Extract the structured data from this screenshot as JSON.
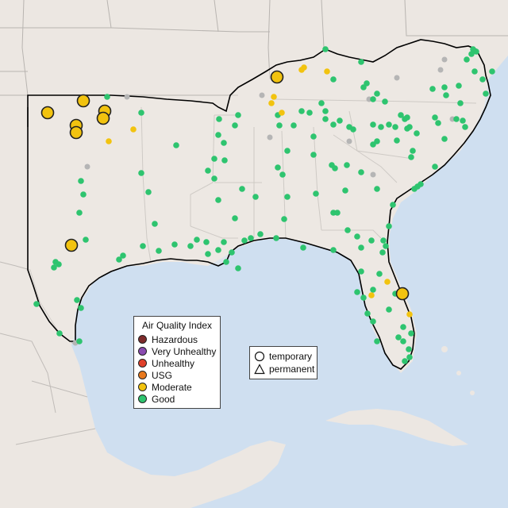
{
  "colors": {
    "ocean": "#cfdff0",
    "land": "#ece7e2",
    "region": "#f0ebe6",
    "border": "#b8b4b0",
    "outline": "#000000",
    "missing": "#b5b5b5"
  },
  "legend_aqi": {
    "title": "Air Quality Index",
    "items": [
      {
        "label": "Hazardous",
        "color": "#7e2b2b"
      },
      {
        "label": "Very Unhealthy",
        "color": "#8a4bb0"
      },
      {
        "label": "Unhealthy",
        "color": "#e0402a"
      },
      {
        "label": "USG",
        "color": "#e8781c"
      },
      {
        "label": "Moderate",
        "color": "#f2c30f"
      },
      {
        "label": "Good",
        "color": "#2ec46f"
      }
    ]
  },
  "legend_shape": {
    "items": [
      {
        "label": "temporary",
        "icon": "circle-icon"
      },
      {
        "label": "permanent",
        "icon": "triangle-icon"
      }
    ]
  }
}
